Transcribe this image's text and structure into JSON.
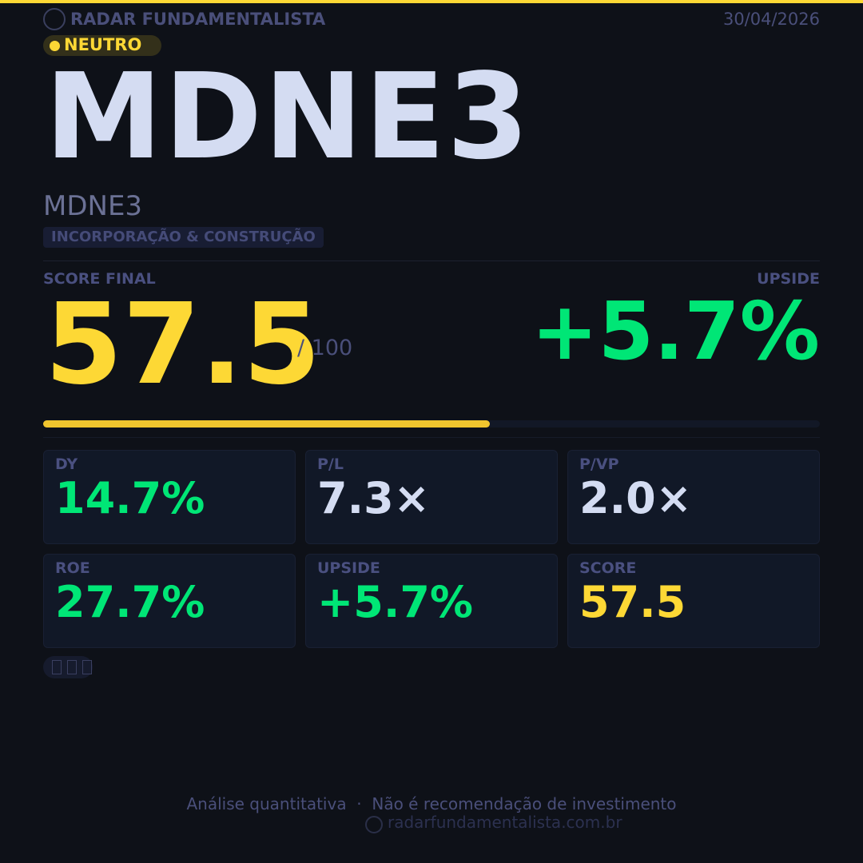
{
  "header": {
    "brand": "RADAR FUNDAMENTALISTA",
    "date": "30/04/2026",
    "badge": "NEUTRO"
  },
  "ticker": "MDNE3",
  "company": "MDNE3",
  "sector": "INCORPORAÇÃO & CONSTRUÇÃO",
  "score": {
    "label": "SCORE FINAL",
    "value": 57.5,
    "out_of": {
      "value": 100,
      "label": "/ 100"
    }
  },
  "upside": {
    "label": "UPSIDE",
    "value": "+5.7%"
  },
  "metrics": [
    {
      "label": "DY",
      "value": "14.7%",
      "color": "#00e676"
    },
    {
      "label": "P/L",
      "value": "7.3×",
      "color": "#d4dcf2"
    },
    {
      "label": "P/VP",
      "value": "2.0×",
      "color": "#d4dcf2"
    },
    {
      "label": "ROE",
      "value": "27.7%",
      "color": "#00e676"
    },
    {
      "label": "UPSIDE",
      "value": "+5.7%",
      "color": "#00e676"
    },
    {
      "label": "SCORE",
      "value": "57.5",
      "color": "#fdd835"
    }
  ],
  "footer": {
    "disclaimer": "Análise quantitativa  ·  Não é recomendação de investimento",
    "site": "radarfundamentalista.com.br"
  }
}
